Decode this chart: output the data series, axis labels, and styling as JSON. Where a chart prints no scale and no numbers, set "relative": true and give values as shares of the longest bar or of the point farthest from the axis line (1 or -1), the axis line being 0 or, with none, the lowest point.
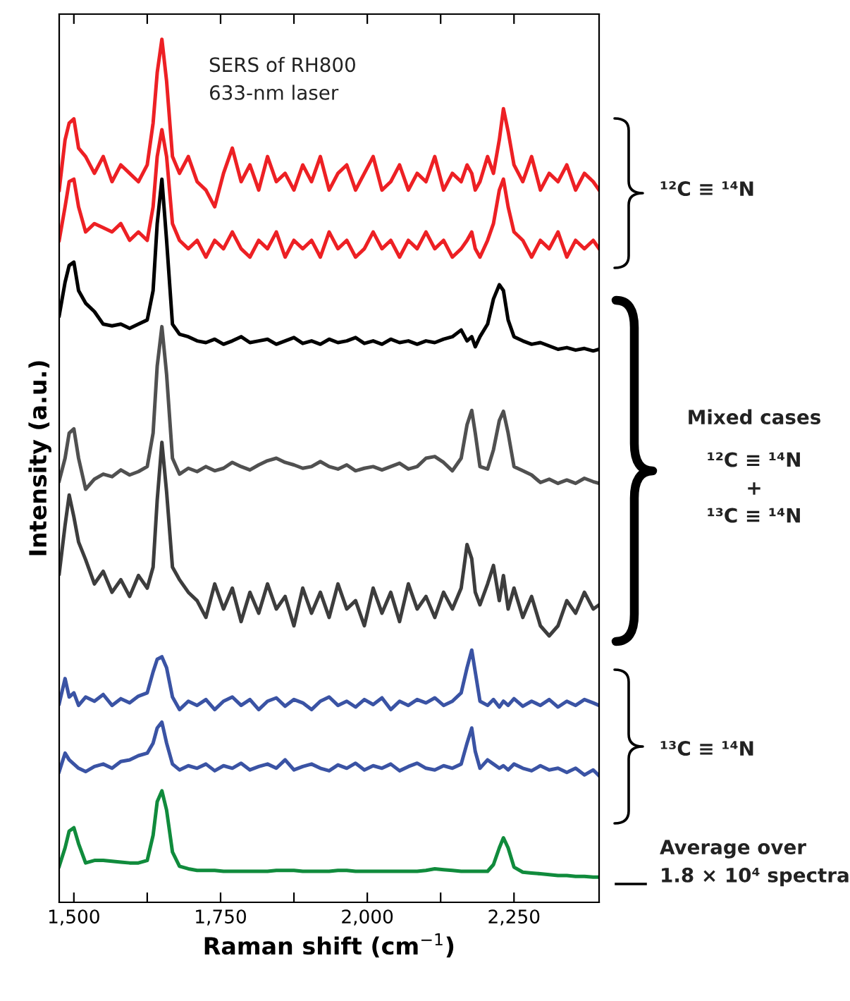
{
  "chart_data": {
    "type": "line",
    "relative": true,
    "xlabel": "Raman shift (cm$^{−1}$)",
    "ylabel": "Intensity (a.u.)",
    "xlim": [
      1475,
      2395
    ],
    "xticks": [
      {
        "value": 1500,
        "label": "1,500"
      },
      {
        "value": 1625,
        "label": null
      },
      {
        "value": 1750,
        "label": "1,750"
      },
      {
        "value": 1875,
        "label": null
      },
      {
        "value": 2000,
        "label": "2,000"
      },
      {
        "value": 2125,
        "label": null
      },
      {
        "value": 2250,
        "label": "2,250"
      }
    ],
    "x": [
      1475,
      1485,
      1492,
      1500,
      1508,
      1520,
      1535,
      1550,
      1565,
      1580,
      1595,
      1610,
      1625,
      1635,
      1642,
      1650,
      1658,
      1668,
      1680,
      1695,
      1710,
      1725,
      1740,
      1755,
      1770,
      1785,
      1800,
      1815,
      1830,
      1845,
      1860,
      1875,
      1890,
      1905,
      1920,
      1935,
      1950,
      1965,
      1980,
      1995,
      2010,
      2025,
      2040,
      2055,
      2070,
      2085,
      2100,
      2115,
      2130,
      2145,
      2160,
      2170,
      2178,
      2184,
      2192,
      2205,
      2215,
      2225,
      2232,
      2240,
      2250,
      2265,
      2280,
      2295,
      2310,
      2325,
      2340,
      2355,
      2370,
      2385,
      2395
    ],
    "series": [
      {
        "color": "#ed2024",
        "values": [
          0.82,
          0.88,
          0.9,
          0.905,
          0.87,
          0.86,
          0.84,
          0.86,
          0.83,
          0.85,
          0.84,
          0.83,
          0.85,
          0.9,
          0.96,
          1.0,
          0.95,
          0.86,
          0.84,
          0.86,
          0.83,
          0.82,
          0.8,
          0.84,
          0.87,
          0.83,
          0.85,
          0.82,
          0.86,
          0.83,
          0.84,
          0.82,
          0.85,
          0.83,
          0.86,
          0.82,
          0.84,
          0.85,
          0.82,
          0.84,
          0.86,
          0.82,
          0.83,
          0.85,
          0.82,
          0.84,
          0.83,
          0.86,
          0.82,
          0.84,
          0.83,
          0.85,
          0.84,
          0.82,
          0.83,
          0.86,
          0.84,
          0.88,
          0.917,
          0.89,
          0.85,
          0.83,
          0.86,
          0.82,
          0.84,
          0.83,
          0.85,
          0.82,
          0.84,
          0.83,
          0.82
        ]
      },
      {
        "color": "#ed2024",
        "values": [
          0.76,
          0.8,
          0.83,
          0.833,
          0.8,
          0.77,
          0.78,
          0.775,
          0.77,
          0.78,
          0.76,
          0.77,
          0.76,
          0.8,
          0.86,
          0.892,
          0.86,
          0.78,
          0.76,
          0.75,
          0.76,
          0.74,
          0.76,
          0.75,
          0.77,
          0.75,
          0.74,
          0.76,
          0.75,
          0.77,
          0.74,
          0.76,
          0.75,
          0.76,
          0.74,
          0.77,
          0.75,
          0.76,
          0.74,
          0.75,
          0.77,
          0.75,
          0.76,
          0.74,
          0.76,
          0.75,
          0.77,
          0.75,
          0.76,
          0.74,
          0.75,
          0.76,
          0.77,
          0.75,
          0.74,
          0.76,
          0.78,
          0.82,
          0.833,
          0.8,
          0.77,
          0.76,
          0.74,
          0.76,
          0.75,
          0.77,
          0.74,
          0.76,
          0.75,
          0.76,
          0.75
        ]
      },
      {
        "color": "#000000",
        "values": [
          0.67,
          0.71,
          0.73,
          0.734,
          0.7,
          0.685,
          0.675,
          0.66,
          0.658,
          0.66,
          0.655,
          0.66,
          0.665,
          0.7,
          0.78,
          0.833,
          0.76,
          0.66,
          0.648,
          0.645,
          0.64,
          0.638,
          0.642,
          0.636,
          0.64,
          0.645,
          0.638,
          0.64,
          0.642,
          0.636,
          0.64,
          0.644,
          0.637,
          0.64,
          0.636,
          0.642,
          0.638,
          0.64,
          0.644,
          0.637,
          0.64,
          0.636,
          0.642,
          0.638,
          0.64,
          0.636,
          0.64,
          0.638,
          0.642,
          0.645,
          0.653,
          0.64,
          0.645,
          0.633,
          0.645,
          0.66,
          0.69,
          0.707,
          0.7,
          0.665,
          0.645,
          0.64,
          0.636,
          0.638,
          0.634,
          0.63,
          0.632,
          0.629,
          0.631,
          0.628,
          0.63
        ]
      },
      {
        "color": "#505050",
        "values": [
          0.473,
          0.5,
          0.53,
          0.535,
          0.5,
          0.463,
          0.475,
          0.481,
          0.478,
          0.486,
          0.48,
          0.484,
          0.49,
          0.53,
          0.61,
          0.657,
          0.6,
          0.5,
          0.481,
          0.488,
          0.484,
          0.49,
          0.485,
          0.488,
          0.495,
          0.49,
          0.486,
          0.492,
          0.497,
          0.5,
          0.495,
          0.492,
          0.488,
          0.49,
          0.496,
          0.49,
          0.487,
          0.492,
          0.485,
          0.488,
          0.49,
          0.486,
          0.49,
          0.494,
          0.487,
          0.49,
          0.5,
          0.502,
          0.495,
          0.485,
          0.5,
          0.54,
          0.557,
          0.53,
          0.49,
          0.487,
          0.51,
          0.545,
          0.556,
          0.53,
          0.49,
          0.485,
          0.48,
          0.471,
          0.475,
          0.47,
          0.474,
          0.47,
          0.476,
          0.472,
          0.47
        ]
      },
      {
        "color": "#3d3d3d",
        "values": [
          0.362,
          0.42,
          0.456,
          0.43,
          0.4,
          0.379,
          0.35,
          0.365,
          0.34,
          0.355,
          0.335,
          0.36,
          0.345,
          0.37,
          0.45,
          0.519,
          0.46,
          0.37,
          0.355,
          0.34,
          0.33,
          0.31,
          0.35,
          0.32,
          0.345,
          0.305,
          0.34,
          0.315,
          0.35,
          0.32,
          0.335,
          0.3,
          0.345,
          0.315,
          0.34,
          0.31,
          0.35,
          0.32,
          0.33,
          0.3,
          0.345,
          0.315,
          0.34,
          0.305,
          0.35,
          0.32,
          0.335,
          0.31,
          0.34,
          0.32,
          0.345,
          0.397,
          0.38,
          0.34,
          0.325,
          0.35,
          0.372,
          0.33,
          0.36,
          0.32,
          0.345,
          0.31,
          0.335,
          0.3,
          0.288,
          0.3,
          0.33,
          0.315,
          0.34,
          0.32,
          0.325
        ]
      },
      {
        "color": "#3a53a4",
        "values": [
          0.207,
          0.237,
          0.215,
          0.22,
          0.205,
          0.215,
          0.21,
          0.218,
          0.205,
          0.213,
          0.208,
          0.216,
          0.22,
          0.245,
          0.26,
          0.263,
          0.25,
          0.215,
          0.2,
          0.21,
          0.205,
          0.212,
          0.2,
          0.21,
          0.215,
          0.205,
          0.212,
          0.2,
          0.21,
          0.214,
          0.204,
          0.212,
          0.208,
          0.2,
          0.21,
          0.215,
          0.205,
          0.21,
          0.203,
          0.212,
          0.206,
          0.214,
          0.2,
          0.21,
          0.205,
          0.212,
          0.208,
          0.214,
          0.205,
          0.21,
          0.22,
          0.25,
          0.271,
          0.245,
          0.21,
          0.205,
          0.212,
          0.203,
          0.21,
          0.205,
          0.213,
          0.204,
          0.21,
          0.205,
          0.212,
          0.203,
          0.21,
          0.205,
          0.212,
          0.208,
          0.205
        ]
      },
      {
        "color": "#3a53a4",
        "values": [
          0.126,
          0.148,
          0.14,
          0.135,
          0.13,
          0.126,
          0.132,
          0.135,
          0.13,
          0.138,
          0.14,
          0.145,
          0.148,
          0.16,
          0.178,
          0.185,
          0.16,
          0.135,
          0.128,
          0.133,
          0.13,
          0.135,
          0.127,
          0.133,
          0.13,
          0.136,
          0.128,
          0.132,
          0.135,
          0.13,
          0.14,
          0.128,
          0.132,
          0.135,
          0.13,
          0.127,
          0.134,
          0.13,
          0.136,
          0.128,
          0.133,
          0.13,
          0.135,
          0.127,
          0.132,
          0.136,
          0.13,
          0.128,
          0.133,
          0.13,
          0.135,
          0.16,
          0.178,
          0.15,
          0.13,
          0.14,
          0.135,
          0.13,
          0.133,
          0.128,
          0.135,
          0.13,
          0.127,
          0.133,
          0.128,
          0.13,
          0.125,
          0.13,
          0.122,
          0.128,
          0.121
        ]
      },
      {
        "color": "#108b3c",
        "values": [
          0.013,
          0.035,
          0.055,
          0.059,
          0.04,
          0.017,
          0.02,
          0.02,
          0.019,
          0.018,
          0.017,
          0.017,
          0.02,
          0.05,
          0.09,
          0.103,
          0.08,
          0.03,
          0.013,
          0.01,
          0.008,
          0.008,
          0.008,
          0.007,
          0.007,
          0.007,
          0.007,
          0.007,
          0.007,
          0.008,
          0.008,
          0.008,
          0.007,
          0.007,
          0.007,
          0.007,
          0.008,
          0.008,
          0.007,
          0.007,
          0.007,
          0.007,
          0.007,
          0.007,
          0.007,
          0.007,
          0.008,
          0.01,
          0.009,
          0.008,
          0.007,
          0.007,
          0.007,
          0.007,
          0.007,
          0.007,
          0.015,
          0.035,
          0.047,
          0.035,
          0.012,
          0.006,
          0.005,
          0.004,
          0.003,
          0.002,
          0.002,
          0.001,
          0.001,
          0.0,
          0.0
        ]
      }
    ],
    "annotations": [
      "SERS of RH800\n633-nm laser",
      "¹²C ≡ ¹⁴N",
      "Mixed cases",
      "¹²C ≡ ¹⁴N\n+\n¹³C ≡ ¹⁴N",
      "¹³C ≡ ¹⁴N",
      "Average over\n1.8 × 10⁴ spectra"
    ]
  }
}
